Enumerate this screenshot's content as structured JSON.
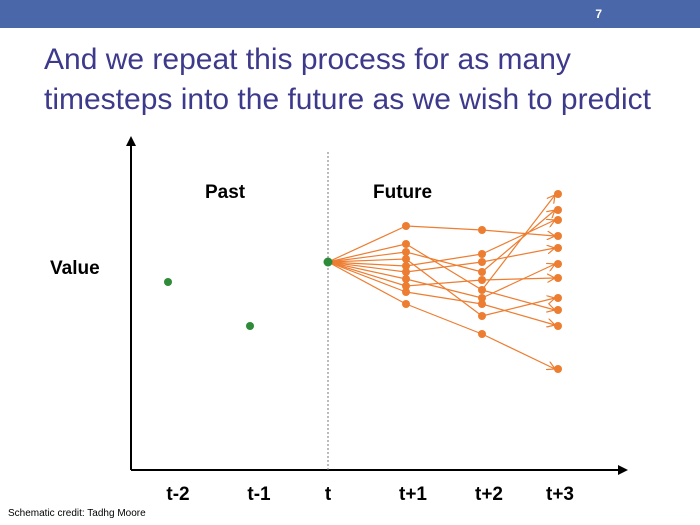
{
  "slide": {
    "number": "7"
  },
  "title": {
    "line1": "And we repeat this process for as many",
    "line2": "timesteps into the future as we wish to predict"
  },
  "diagram": {
    "y_axis_label": "Value",
    "region_past": "Past",
    "region_future": "Future",
    "x_ticks": [
      "t-2",
      "t-1",
      "t",
      "t+1",
      "t+2",
      "t+3"
    ]
  },
  "credit": "Schematic credit: Tadhg Moore",
  "colors": {
    "observed": "#2e8b3a",
    "forecast": "#ed7d31",
    "title": "#3d3a8c",
    "bar": "#4a67a9"
  }
}
